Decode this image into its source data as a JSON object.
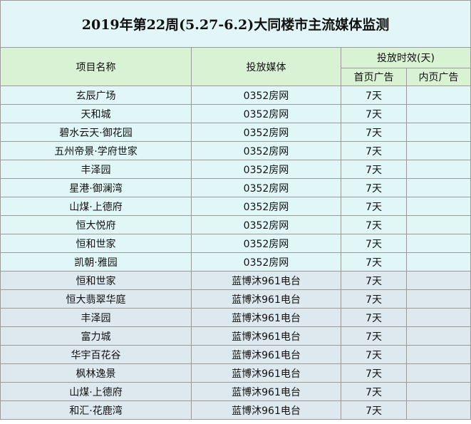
{
  "title": "2019年第22周(5.27-6.2)大同楼市主流媒体监测",
  "table": {
    "headers": [
      "项目名称",
      "投放媒体",
      "投放时效(天)",
      "首页广告",
      "内页广告"
    ],
    "rows": [
      [
        "玄辰广场",
        "0352房网",
        "7天"
      ],
      [
        "天和城",
        "0352房网",
        "7天"
      ],
      [
        "碧水云天·御花园",
        "0352房网",
        "7天"
      ],
      [
        "五州帝景·学府世家",
        "0352房网",
        "7天"
      ],
      [
        "丰泽园",
        "0352房网",
        "7天"
      ],
      [
        "星港·御澜湾",
        "0352房网",
        "7天"
      ],
      [
        "山煤·上德府",
        "0352房网",
        "7天"
      ],
      [
        "恒大悦府",
        "0352房网",
        "7天"
      ],
      [
        "恒和世家",
        "0352房网",
        "7天"
      ],
      [
        "凯朝·雅园",
        "0352房网",
        "7天"
      ],
      [
        "恒和世家",
        "蓝博沐961电台",
        "7天"
      ],
      [
        "恒大翡翠华庭",
        "蓝博沐961电台",
        "7天"
      ],
      [
        "丰泽园",
        "蓝博沐961电台",
        "7天"
      ],
      [
        "富力城",
        "蓝博沐961电台",
        "7天"
      ],
      [
        "华宇百花谷",
        "蓝博沐961电台",
        "7天"
      ],
      [
        "枫林逸景",
        "蓝博沐961电台",
        "7天"
      ],
      [
        "山煤·上德府",
        "蓝博沐961电台",
        "7天"
      ],
      [
        "和汇·花鹿湾",
        "蓝博沐961电台",
        "7天"
      ]
    ]
  }
}
